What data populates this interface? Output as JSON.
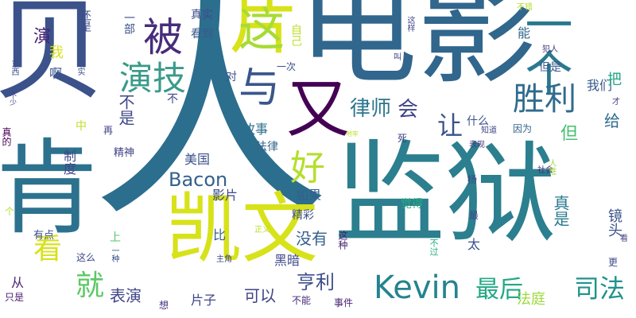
{
  "words": [
    {
      "text": "人",
      "color": "#2c6e8e",
      "vertical": false,
      "size": 300
    },
    {
      "text": "电影",
      "color": "#31668d",
      "vertical": false,
      "size": 150
    },
    {
      "text": "监狱",
      "color": "#2b7f8e",
      "vertical": false,
      "size": 140
    },
    {
      "text": "贝",
      "color": "#3b528b",
      "vertical": false,
      "size": 140
    },
    {
      "text": "肯",
      "color": "#2c728e",
      "vertical": false,
      "size": 130
    },
    {
      "text": "凯文",
      "color": "#d7e219",
      "vertical": false,
      "size": 96
    },
    {
      "text": "片",
      "color": "#d8e219",
      "vertical": false,
      "size": 88
    },
    {
      "text": "又",
      "color": "#440154",
      "vertical": false,
      "size": 80
    },
    {
      "text": "一个",
      "color": "#2a788e",
      "vertical": true,
      "size": 60
    },
    {
      "text": "被",
      "color": "#472d7b",
      "vertical": false,
      "size": 50
    },
    {
      "text": "这",
      "color": "#a8db34",
      "vertical": false,
      "size": 58
    },
    {
      "text": "与",
      "color": "#39568c",
      "vertical": false,
      "size": 52
    },
    {
      "text": "演技",
      "color": "#3a9a8a",
      "vertical": false,
      "size": 42
    },
    {
      "text": "胜利",
      "color": "#2f6b8e",
      "vertical": false,
      "size": 40
    },
    {
      "text": "好",
      "color": "#b5de2b",
      "vertical": false,
      "size": 44
    },
    {
      "text": "Kevin",
      "color": "#25838e",
      "vertical": false,
      "size": 40
    },
    {
      "text": "看",
      "color": "#d8e219",
      "vertical": false,
      "size": 36
    },
    {
      "text": "就",
      "color": "#5cc863",
      "vertical": false,
      "size": 36
    },
    {
      "text": "让",
      "color": "#3a528b",
      "vertical": false,
      "size": 32
    },
    {
      "text": "律师",
      "color": "#2b758e",
      "vertical": false,
      "size": 26
    },
    {
      "text": "会",
      "color": "#404387",
      "vertical": false,
      "size": 26
    },
    {
      "text": "最后",
      "color": "#22a884",
      "vertical": false,
      "size": 30
    },
    {
      "text": "司法",
      "color": "#20938c",
      "vertical": false,
      "size": 32
    },
    {
      "text": "Bacon",
      "color": "#34608d",
      "vertical": false,
      "size": 24
    },
    {
      "text": "亨利",
      "color": "#3d4d8a",
      "vertical": false,
      "size": 24
    },
    {
      "text": "可以",
      "color": "#414487",
      "vertical": false,
      "size": 20
    },
    {
      "text": "表演",
      "color": "#404688",
      "vertical": false,
      "size": 20
    },
    {
      "text": "没有",
      "color": "#34608d",
      "vertical": false,
      "size": 20
    },
    {
      "text": "真是",
      "color": "#29798e",
      "vertical": true,
      "size": 20
    },
    {
      "text": "镜头",
      "color": "#3a538b",
      "vertical": true,
      "size": 18
    },
    {
      "text": "但",
      "color": "#46c06f",
      "vertical": false,
      "size": 22
    },
    {
      "text": "给",
      "color": "#2f6c8e",
      "vertical": false,
      "size": 20
    },
    {
      "text": "不是",
      "color": "#3f4788",
      "vertical": true,
      "size": 20
    },
    {
      "text": "法庭",
      "color": "#9cd93b",
      "vertical": false,
      "size": 18
    },
    {
      "text": "美国",
      "color": "#3b518b",
      "vertical": false,
      "size": 16
    },
    {
      "text": "故事",
      "color": "#2e6f8e",
      "vertical": false,
      "size": 16
    },
    {
      "text": "影片",
      "color": "#3e4a89",
      "vertical": false,
      "size": 16
    },
    {
      "text": "如果",
      "color": "#355f8d",
      "vertical": false,
      "size": 16
    },
    {
      "text": "觉得",
      "color": "#27ad81",
      "vertical": false,
      "size": 14
    },
    {
      "text": "精彩",
      "color": "#3d4e8a",
      "vertical": false,
      "size": 14
    },
    {
      "text": "片子",
      "color": "#404688",
      "vertical": false,
      "size": 16
    },
    {
      "text": "黑暗",
      "color": "#3e4989",
      "vertical": false,
      "size": 16
    },
    {
      "text": "我们",
      "color": "#38598c",
      "vertical": false,
      "size": 16
    },
    {
      "text": "真实",
      "color": "#3e4c8a",
      "vertical": false,
      "size": 14
    },
    {
      "text": "看到",
      "color": "#375a8c",
      "vertical": false,
      "size": 14
    },
    {
      "text": "什么",
      "color": "#3b528b",
      "vertical": false,
      "size": 14
    },
    {
      "text": "法律",
      "color": "#32658e",
      "vertical": false,
      "size": 14
    },
    {
      "text": "精神",
      "color": "#404387",
      "vertical": false,
      "size": 13
    },
    {
      "text": "制度",
      "color": "#3f4889",
      "vertical": true,
      "size": 16
    },
    {
      "text": "演",
      "color": "#482173",
      "vertical": false,
      "size": 22
    },
    {
      "text": "有点",
      "color": "#3c4f8a",
      "vertical": false,
      "size": 13
    },
    {
      "text": "比",
      "color": "#355e8d",
      "vertical": false,
      "size": 16
    },
    {
      "text": "太",
      "color": "#3b518b",
      "vertical": false,
      "size": 16
    },
    {
      "text": "能",
      "color": "#31688e",
      "vertical": false,
      "size": 16
    },
    {
      "text": "但是",
      "color": "#38588c",
      "vertical": false,
      "size": 14
    },
    {
      "text": "把",
      "color": "#21a685",
      "vertical": false,
      "size": 18
    },
    {
      "text": "对",
      "color": "#3b518b",
      "vertical": false,
      "size": 14
    },
    {
      "text": "一次",
      "color": "#3b518b",
      "vertical": false,
      "size": 12
    },
    {
      "text": "这么",
      "color": "#3e4a89",
      "vertical": false,
      "size": 12
    },
    {
      "text": "主角",
      "color": "#3f4788",
      "vertical": false,
      "size": 10
    },
    {
      "text": "不能",
      "color": "#472d7b",
      "vertical": false,
      "size": 12
    },
    {
      "text": "事件",
      "color": "#482475",
      "vertical": false,
      "size": 12
    },
    {
      "text": "只是",
      "color": "#481b6d",
      "vertical": false,
      "size": 12
    },
    {
      "text": "从",
      "color": "#482374",
      "vertical": false,
      "size": 16
    },
    {
      "text": "想",
      "color": "#46327e",
      "vertical": false,
      "size": 12
    },
    {
      "text": "更",
      "color": "#3e4c8a",
      "vertical": false,
      "size": 12
    },
    {
      "text": "最",
      "color": "#3f4889",
      "vertical": false,
      "size": 12
    },
    {
      "text": "杨",
      "color": "#3e4a89",
      "vertical": false,
      "size": 12
    },
    {
      "text": "死",
      "color": "#404588",
      "vertical": false,
      "size": 12
    },
    {
      "text": "表现",
      "color": "#453581",
      "vertical": false,
      "size": 10
    },
    {
      "text": "知道",
      "color": "#414487",
      "vertical": false,
      "size": 10
    },
    {
      "text": "因为",
      "color": "#33638d",
      "vertical": false,
      "size": 12
    },
    {
      "text": "社会",
      "color": "#472c7a",
      "vertical": false,
      "size": 10
    },
    {
      "text": "人性",
      "color": "#9bd93c",
      "vertical": true,
      "size": 10
    },
    {
      "text": "看",
      "color": "#404387",
      "vertical": false,
      "size": 10
    },
    {
      "text": "不过",
      "color": "#2ab07f",
      "vertical": true,
      "size": 11
    },
    {
      "text": "这种",
      "color": "#482173",
      "vertical": true,
      "size": 12
    },
    {
      "text": "正义",
      "color": "#b8de29",
      "vertical": false,
      "size": 10
    },
    {
      "text": "上",
      "color": "#56c667",
      "vertical": false,
      "size": 14
    },
    {
      "text": "一种",
      "color": "#3c4f8a",
      "vertical": true,
      "size": 10
    },
    {
      "text": "再",
      "color": "#404387",
      "vertical": false,
      "size": 12
    },
    {
      "text": "中",
      "color": "#bddf26",
      "vertical": false,
      "size": 14
    },
    {
      "text": "啊",
      "color": "#3a548c",
      "vertical": false,
      "size": 16
    },
    {
      "text": "我",
      "color": "#d8e219",
      "vertical": false,
      "size": 18
    },
    {
      "text": "还是",
      "color": "#3d4d8a",
      "vertical": true,
      "size": 14
    },
    {
      "text": "现实",
      "color": "#3b518b",
      "vertical": true,
      "size": 10
    },
    {
      "text": "东西",
      "color": "#3d4d8a",
      "vertical": true,
      "size": 10
    },
    {
      "text": "不少",
      "color": "#3f4788",
      "vertical": true,
      "size": 9
    },
    {
      "text": "真的",
      "color": "#440154",
      "vertical": true,
      "size": 12
    },
    {
      "text": "个",
      "color": "#b5de2b",
      "vertical": false,
      "size": 12
    },
    {
      "text": "一部",
      "color": "#3b528b",
      "vertical": true,
      "size": 14
    },
    {
      "text": "自己",
      "color": "#bddf26",
      "vertical": true,
      "size": 14
    },
    {
      "text": "不",
      "color": "#3f4889",
      "vertical": false,
      "size": 14
    },
    {
      "text": "叫",
      "color": "#404387",
      "vertical": false,
      "size": 10
    },
    {
      "text": "这样",
      "color": "#404588",
      "vertical": true,
      "size": 10
    },
    {
      "text": "不错",
      "color": "#b5de2b",
      "vertical": false,
      "size": 10
    },
    {
      "text": "犯人",
      "color": "#453781",
      "vertical": false,
      "size": 10
    },
    {
      "text": "地牢",
      "color": "#bddf26",
      "vertical": false,
      "size": 8
    },
    {
      "text": "才",
      "color": "#453581",
      "vertical": false,
      "size": 10
    }
  ]
}
